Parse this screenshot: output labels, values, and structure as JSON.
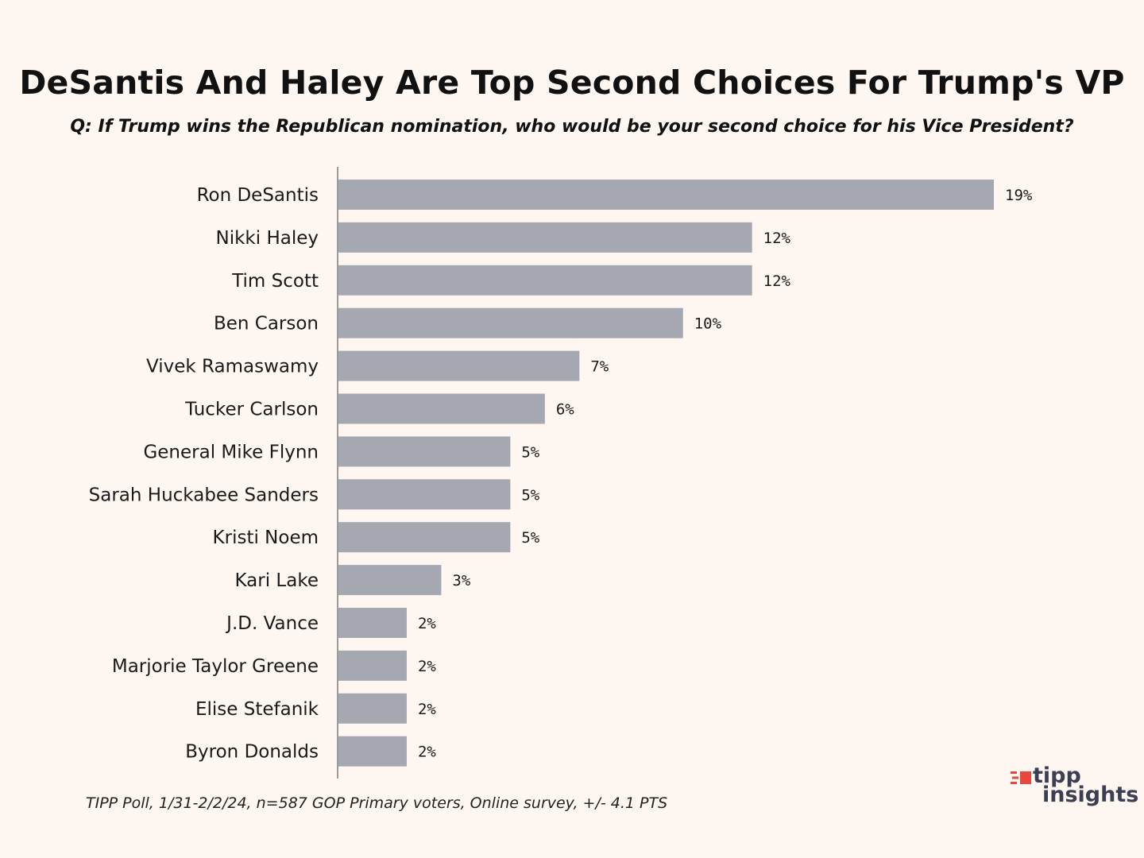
{
  "chart_data": {
    "type": "bar",
    "orientation": "horizontal",
    "title": "DeSantis And Haley Are Top Second Choices For Trump's VP",
    "subtitle": "Q: If Trump wins the Republican nomination, who would be your second choice for his Vice President?",
    "categories": [
      "Ron DeSantis",
      "Nikki Haley",
      "Tim Scott",
      "Ben Carson",
      "Vivek Ramaswamy",
      "Tucker Carlson",
      "General Mike Flynn",
      "Sarah Huckabee Sanders",
      "Kristi Noem",
      "Kari Lake",
      "J.D. Vance",
      "Marjorie Taylor Greene",
      "Elise Stefanik",
      "Byron Donalds"
    ],
    "values": [
      19,
      12,
      12,
      10,
      7,
      6,
      5,
      5,
      5,
      3,
      2,
      2,
      2,
      2
    ],
    "labels": [
      "19%",
      "12%",
      "12%",
      "10%",
      "7%",
      "6%",
      "5%",
      "5%",
      "5%",
      "3%",
      "2%",
      "2%",
      "2%",
      "2%"
    ],
    "unit": "%",
    "xlim": [
      0,
      19
    ],
    "xlabel": "",
    "ylabel": "",
    "bar_color": "#a5a8b1"
  },
  "footer": "TIPP Poll, 1/31-2/2/24, n=587 GOP Primary voters, Online survey, +/- 4.1 PTS",
  "logo": {
    "line1": "tipp",
    "line2": "insights",
    "icon": "tipp-logo-mark",
    "accent_color": "#e8473d",
    "text_color": "#3c3f52"
  },
  "colors": {
    "background": "#fdf6f1"
  }
}
